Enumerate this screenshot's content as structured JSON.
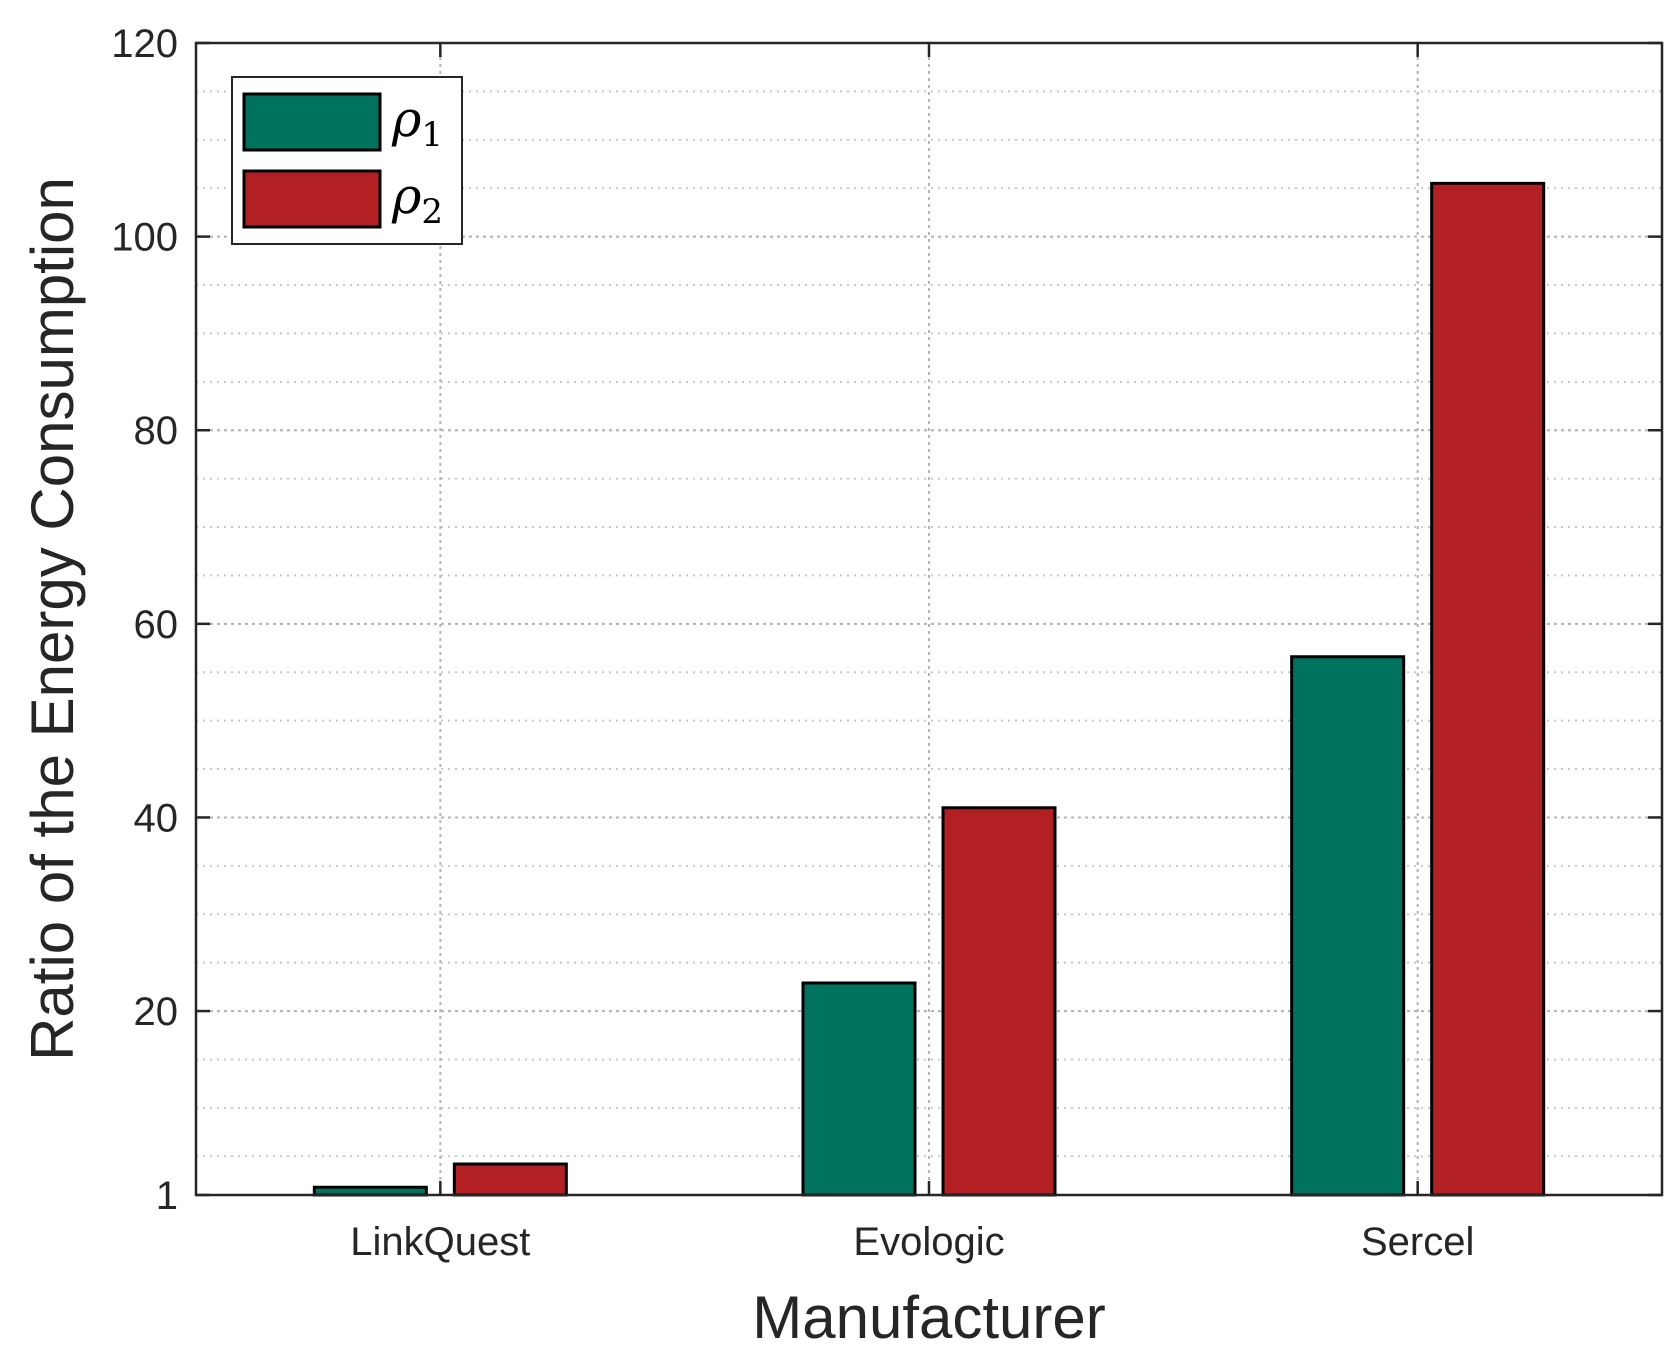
{
  "chart_data": {
    "type": "bar",
    "categories": [
      "LinkQuest",
      "Evologic",
      "Sercel"
    ],
    "series": [
      {
        "name": "ρ1",
        "values": [
          1.8,
          22.9,
          56.6
        ],
        "color": "#00735F"
      },
      {
        "name": "ρ2",
        "values": [
          4.2,
          41.0,
          105.5
        ],
        "color": "#B22024"
      }
    ],
    "legend": {
      "placement": "top-left",
      "entries": [
        {
          "symbol": "ρ",
          "subscript": "1"
        },
        {
          "symbol": "ρ",
          "subscript": "2"
        }
      ]
    },
    "xlabel": "Manufacturer",
    "ylabel": "Ratio of the Energy Consumption",
    "ylim": [
      1,
      120
    ],
    "yticks": [
      1,
      20,
      40,
      60,
      80,
      100,
      120
    ],
    "yticklabels": [
      "1",
      "20",
      "40",
      "60",
      "80",
      "100",
      "120"
    ],
    "minor_grid_step": 5,
    "grid": true,
    "title": ""
  }
}
